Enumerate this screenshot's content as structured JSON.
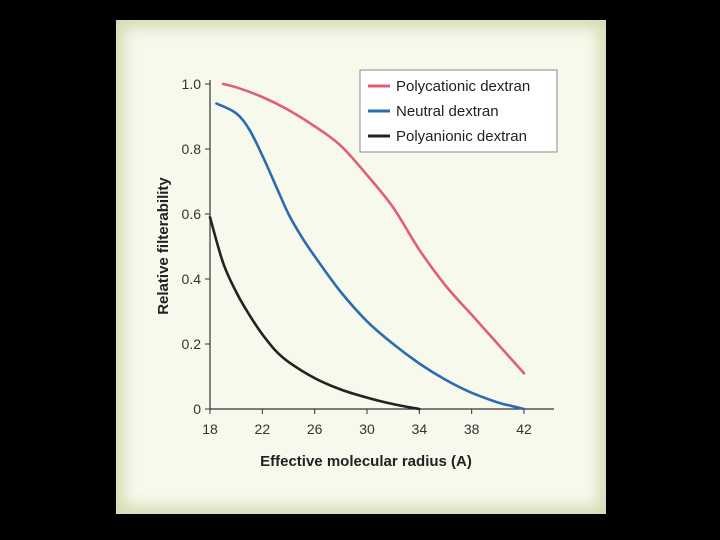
{
  "chart_data": {
    "type": "line",
    "title": "",
    "xlabel": "Effective molecular radius (A)",
    "ylabel": "Relative filterability",
    "xlim": [
      18,
      42
    ],
    "ylim": [
      0,
      1.0
    ],
    "x_ticks": [
      "18",
      "22",
      "26",
      "30",
      "34",
      "38",
      "42"
    ],
    "y_ticks": [
      "0",
      "0.2",
      "0.4",
      "0.6",
      "0.8",
      "1.0"
    ],
    "grid": false,
    "legend_position": "top-right",
    "series": [
      {
        "name": "Polycationic dextran",
        "color": "#e06072",
        "x": [
          19,
          20,
          22,
          24,
          26,
          28,
          30,
          32,
          34,
          36,
          38,
          40,
          42
        ],
        "y": [
          1.0,
          0.99,
          0.96,
          0.92,
          0.87,
          0.81,
          0.72,
          0.62,
          0.49,
          0.38,
          0.29,
          0.2,
          0.11
        ]
      },
      {
        "name": "Neutral dextran",
        "color": "#2b6cb0",
        "x": [
          18.5,
          20,
          21,
          22,
          23,
          24,
          25,
          26,
          28,
          30,
          32,
          34,
          36,
          38,
          40,
          41,
          42
        ],
        "y": [
          0.94,
          0.91,
          0.86,
          0.78,
          0.69,
          0.6,
          0.53,
          0.47,
          0.36,
          0.27,
          0.2,
          0.14,
          0.09,
          0.05,
          0.02,
          0.01,
          0.0
        ]
      },
      {
        "name": "Polyanionic dextran",
        "color": "#222222",
        "x": [
          18,
          19,
          20,
          21,
          22,
          23,
          24,
          26,
          28,
          30,
          32,
          34
        ],
        "y": [
          0.59,
          0.45,
          0.36,
          0.29,
          0.23,
          0.18,
          0.145,
          0.095,
          0.06,
          0.035,
          0.015,
          0.0
        ]
      }
    ]
  }
}
